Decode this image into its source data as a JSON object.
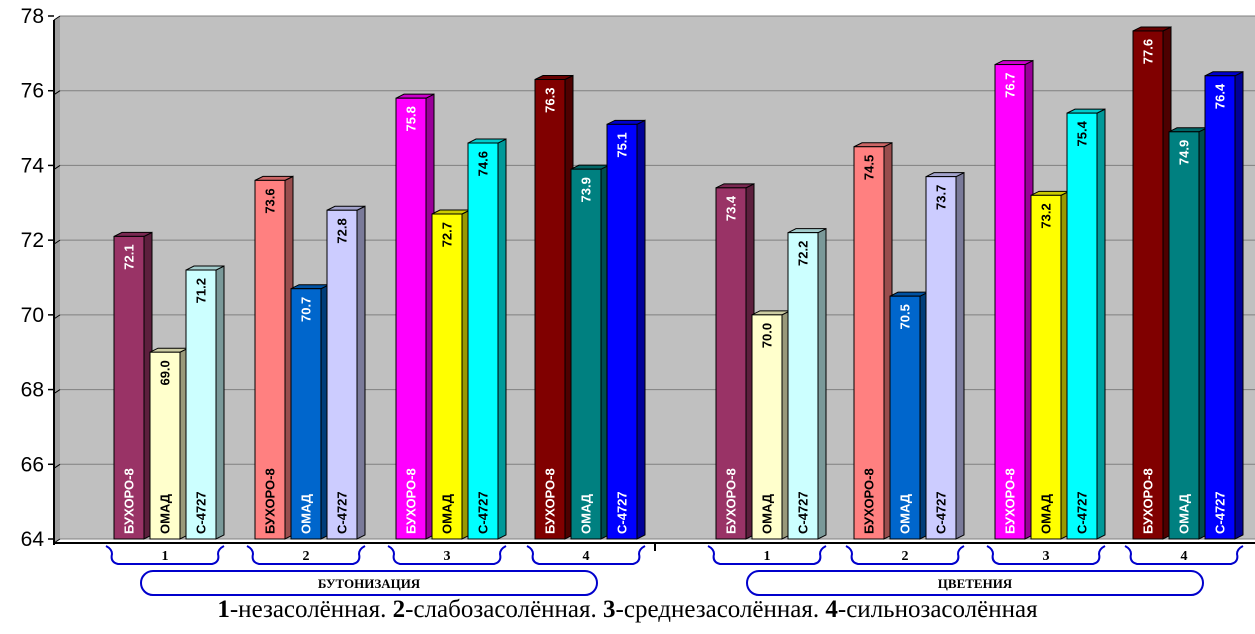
{
  "chart_data": {
    "type": "bar",
    "ylim": [
      64,
      78
    ],
    "yticks": [
      64,
      66,
      68,
      70,
      72,
      74,
      76,
      78
    ],
    "grid": true,
    "stages": [
      {
        "label": "БУТОНИЗАЦИЯ",
        "groups": [
          {
            "category": "1",
            "bars": [
              {
                "variety": "БУХОРО-8",
                "value": 72.1,
                "label": "72.1",
                "color": "#993366"
              },
              {
                "variety": "ОМАД",
                "value": 69.0,
                "label": "69.0",
                "color": "#FFFFCC"
              },
              {
                "variety": "С-4727",
                "value": 71.2,
                "label": "71.2",
                "color": "#CCFFFF"
              }
            ]
          },
          {
            "category": "2",
            "bars": [
              {
                "variety": "БУХОРО-8",
                "value": 73.6,
                "label": "73.6",
                "color": "#FF8080"
              },
              {
                "variety": "ОМАД",
                "value": 70.7,
                "label": "70.7",
                "color": "#0066CC"
              },
              {
                "variety": "С-4727",
                "value": 72.8,
                "label": "72.8",
                "color": "#CCCCFF"
              }
            ]
          },
          {
            "category": "3",
            "bars": [
              {
                "variety": "БУХОРО-8",
                "value": 75.8,
                "label": "75.8",
                "color": "#FF00FF"
              },
              {
                "variety": "ОМАД",
                "value": 72.7,
                "label": "72.7",
                "color": "#FFFF00"
              },
              {
                "variety": "С-4727",
                "value": 74.6,
                "label": "74.6",
                "color": "#00FFFF"
              }
            ]
          },
          {
            "category": "4",
            "bars": [
              {
                "variety": "БУХОРО-8",
                "value": 76.3,
                "label": "76.3",
                "color": "#800000"
              },
              {
                "variety": "ОМАД",
                "value": 73.9,
                "label": "73.9",
                "color": "#008080"
              },
              {
                "variety": "С-4727",
                "value": 75.1,
                "label": "75.1",
                "color": "#0000FF"
              }
            ]
          }
        ]
      },
      {
        "label": "ЦВЕТЕНИЯ",
        "groups": [
          {
            "category": "1",
            "bars": [
              {
                "variety": "БУХОРО-8",
                "value": 73.4,
                "label": "73.4",
                "color": "#993366"
              },
              {
                "variety": "ОМАД",
                "value": 70.0,
                "label": "70.0",
                "color": "#FFFFCC"
              },
              {
                "variety": "С-4727",
                "value": 72.2,
                "label": "72.2",
                "color": "#CCFFFF"
              }
            ]
          },
          {
            "category": "2",
            "bars": [
              {
                "variety": "БУХОРО-8",
                "value": 74.5,
                "label": "74.5",
                "color": "#FF8080"
              },
              {
                "variety": "ОМАД",
                "value": 70.5,
                "label": "70.5",
                "color": "#0066CC"
              },
              {
                "variety": "С-4727",
                "value": 73.7,
                "label": "73.7",
                "color": "#CCCCFF"
              }
            ]
          },
          {
            "category": "3",
            "bars": [
              {
                "variety": "БУХОРО-8",
                "value": 76.7,
                "label": "76.7",
                "color": "#FF00FF"
              },
              {
                "variety": "ОМАД",
                "value": 73.2,
                "label": "73.2",
                "color": "#FFFF00"
              },
              {
                "variety": "С-4727",
                "value": 75.4,
                "label": "75.4",
                "color": "#00FFFF"
              }
            ]
          },
          {
            "category": "4",
            "bars": [
              {
                "variety": "БУХОРО-8",
                "value": 77.6,
                "label": "77.6",
                "color": "#800000"
              },
              {
                "variety": "ОМАД",
                "value": 74.9,
                "label": "74.9",
                "color": "#008080"
              },
              {
                "variety": "С-4727",
                "value": 76.4,
                "label": "76.4",
                "color": "#0000FF"
              }
            ]
          }
        ]
      }
    ]
  },
  "caption": {
    "n1": "1",
    "t1": "-незасолённая. ",
    "n2": "2",
    "t2": "-слабозасолённая. ",
    "n3": "3",
    "t3": "-среднезасолённая. ",
    "n4": "4",
    "t4": "-сильнозасолённая"
  }
}
